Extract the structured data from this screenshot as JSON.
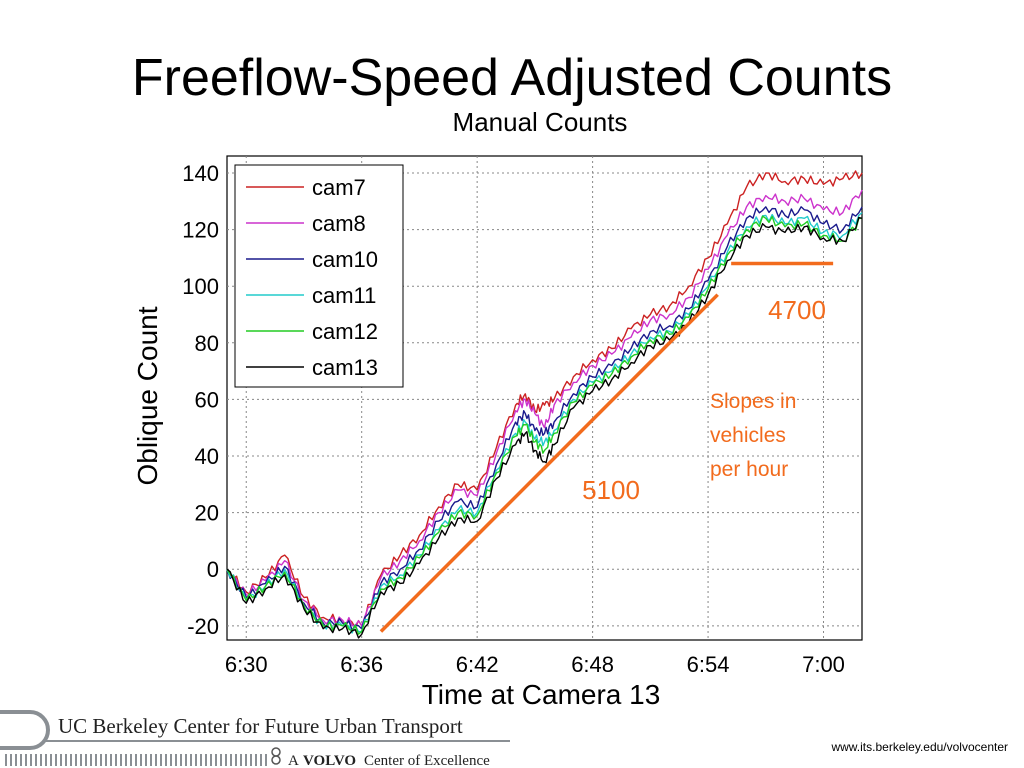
{
  "slide": {
    "title": "Freeflow-Speed Adjusted Counts",
    "url": "www.its.berkeley.edu/volvocenter"
  },
  "footer": {
    "org_line": "UC Berkeley Center for Future Urban Transport",
    "tagline_prefix": "A",
    "tagline_brand": "VOLVO",
    "tagline_suffix": "Center of Excellence"
  },
  "annotations": {
    "slope_high": "4700",
    "slope_low": "5100",
    "note_lines": [
      "Slopes in",
      "vehicles",
      "per hour"
    ],
    "accent_color": "#f26b1d"
  },
  "chart_data": {
    "type": "line",
    "title": "Manual Counts",
    "xlabel": "Time at Camera 13",
    "ylabel": "Oblique Count",
    "x_unit": "minutes after 6:30",
    "x_ticks": [
      "6:30",
      "6:36",
      "6:42",
      "6:48",
      "6:54",
      "7:00"
    ],
    "x_tick_values": [
      0,
      6,
      12,
      18,
      24,
      30
    ],
    "xlim": [
      -1.0,
      32.0
    ],
    "ylim": [
      -25,
      146
    ],
    "y_ticks": [
      -20,
      0,
      20,
      40,
      60,
      80,
      100,
      120,
      140
    ],
    "grid": true,
    "legend_position": "top-left",
    "x": [
      -1.0,
      0,
      1,
      2,
      3,
      4,
      5,
      6,
      7,
      8,
      9,
      10,
      11,
      12,
      13,
      14,
      14.5,
      15,
      15.5,
      16,
      17,
      18,
      19,
      20,
      21,
      22,
      23,
      24,
      25,
      26,
      27,
      28,
      29,
      30,
      31,
      32
    ],
    "series": [
      {
        "name": "cam7",
        "color": "#cc2222",
        "values": [
          0,
          -8,
          -3,
          5,
          -10,
          -17,
          -18,
          -20,
          -2,
          5,
          12,
          22,
          30,
          28,
          43,
          58,
          62,
          56,
          58,
          60,
          68,
          74,
          78,
          85,
          90,
          93,
          100,
          110,
          122,
          135,
          140,
          137,
          138,
          136,
          138,
          140
        ]
      },
      {
        "name": "cam8",
        "color": "#cc33cc",
        "values": [
          0,
          -9,
          -4,
          3,
          -11,
          -18,
          -18,
          -20,
          -3,
          3,
          10,
          20,
          28,
          26,
          41,
          56,
          60,
          55,
          50,
          58,
          66,
          72,
          76,
          82,
          88,
          90,
          96,
          106,
          118,
          128,
          132,
          130,
          131,
          127,
          126,
          134
        ]
      },
      {
        "name": "cam10",
        "color": "#1a1a8c",
        "values": [
          0,
          -10,
          -5,
          1,
          -12,
          -19,
          -19,
          -21,
          -5,
          0,
          7,
          17,
          24,
          22,
          37,
          52,
          55,
          49,
          48,
          52,
          62,
          68,
          72,
          78,
          84,
          86,
          92,
          102,
          114,
          124,
          128,
          125,
          127,
          122,
          120,
          128
        ]
      },
      {
        "name": "cam11",
        "color": "#22cccc",
        "values": [
          0,
          -11,
          -6,
          0,
          -13,
          -20,
          -20,
          -22,
          -6,
          -2,
          5,
          14,
          21,
          20,
          35,
          48,
          52,
          46,
          45,
          49,
          60,
          66,
          70,
          76,
          82,
          84,
          90,
          100,
          112,
          121,
          125,
          122,
          124,
          119,
          118,
          126
        ]
      },
      {
        "name": "cam12",
        "color": "#22cc22",
        "values": [
          0,
          -11,
          -6,
          -1,
          -13,
          -20,
          -20,
          -22,
          -7,
          -3,
          4,
          13,
          20,
          19,
          34,
          47,
          51,
          45,
          42,
          48,
          59,
          65,
          69,
          75,
          81,
          83,
          89,
          99,
          111,
          120,
          124,
          121,
          122,
          118,
          116,
          124
        ]
      },
      {
        "name": "cam13",
        "color": "#000000",
        "values": [
          0,
          -12,
          -7,
          -2,
          -14,
          -21,
          -21,
          -23,
          -8,
          -5,
          2,
          11,
          18,
          17,
          32,
          44,
          48,
          42,
          38,
          44,
          57,
          63,
          67,
          73,
          79,
          81,
          87,
          97,
          109,
          118,
          121,
          119,
          121,
          117,
          116,
          124
        ]
      }
    ],
    "annotation_lines": [
      {
        "label": "5100",
        "x": [
          7.0,
          24.5
        ],
        "y": [
          -22,
          97
        ]
      },
      {
        "label": "4700",
        "x": [
          25.2,
          30.5
        ],
        "y": [
          108,
          108
        ]
      }
    ]
  }
}
